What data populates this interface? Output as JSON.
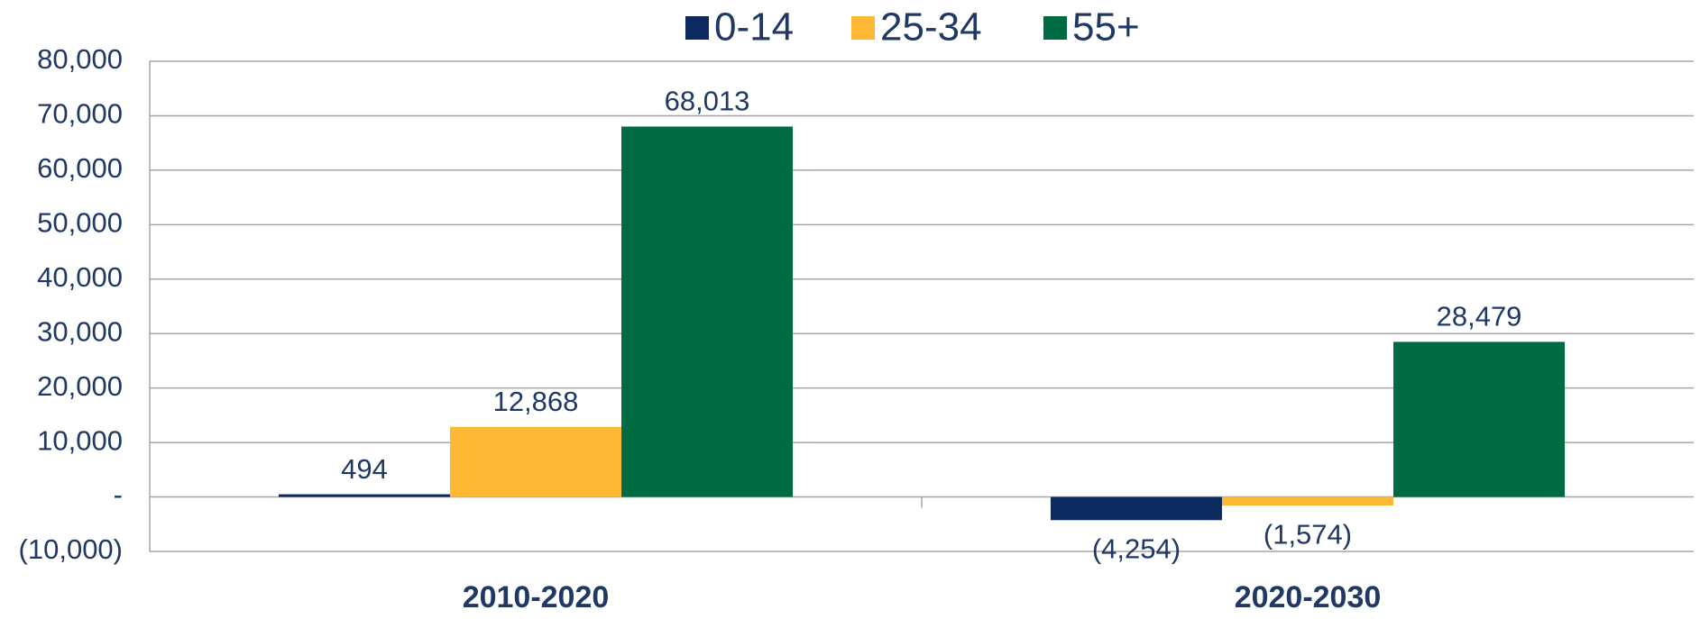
{
  "chart_data": {
    "type": "bar",
    "categories": [
      "2010-2020",
      "2020-2030"
    ],
    "series": [
      {
        "name": "0-14",
        "color": "#0d2a5e",
        "values": [
          494,
          -4254
        ],
        "value_labels": [
          "494",
          "(4,254)"
        ]
      },
      {
        "name": "25-34",
        "color": "#fdb933",
        "values": [
          12868,
          -1574
        ],
        "value_labels": [
          "12,868",
          "(1,574)"
        ]
      },
      {
        "name": "55+",
        "color": "#006a43",
        "values": [
          68013,
          28479
        ],
        "value_labels": [
          "68,013",
          "28,479"
        ]
      }
    ],
    "ylim": [
      -10000,
      80000
    ],
    "yticks": [
      {
        "value": -10000,
        "label": "(10,000)"
      },
      {
        "value": 0,
        "label": "-"
      },
      {
        "value": 10000,
        "label": "10,000"
      },
      {
        "value": 20000,
        "label": "20,000"
      },
      {
        "value": 30000,
        "label": "30,000"
      },
      {
        "value": 40000,
        "label": "40,000"
      },
      {
        "value": 50000,
        "label": "50,000"
      },
      {
        "value": 60000,
        "label": "60,000"
      },
      {
        "value": 70000,
        "label": "70,000"
      },
      {
        "value": 80000,
        "label": "80,000"
      }
    ],
    "grid": true,
    "legend": "top"
  }
}
